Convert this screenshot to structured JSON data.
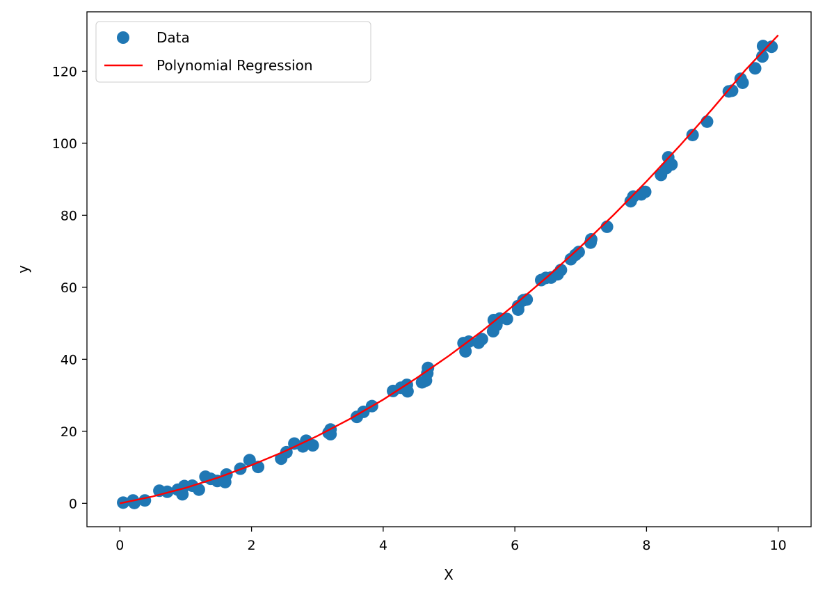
{
  "chart_data": {
    "type": "scatter",
    "title": "",
    "xlabel": "X",
    "ylabel": "y",
    "xlim": [
      -0.5,
      10.5
    ],
    "ylim": [
      -6.5,
      136.5
    ],
    "xticks": [
      0,
      2,
      4,
      6,
      8,
      10
    ],
    "yticks": [
      0,
      20,
      40,
      60,
      80,
      100,
      120
    ],
    "grid": false,
    "legend_position": "top-left",
    "series": [
      {
        "name": "Data",
        "kind": "scatter",
        "color": "#1f77b4",
        "points": [
          [
            0.05,
            0.2
          ],
          [
            0.2,
            0.8
          ],
          [
            0.22,
            0.1
          ],
          [
            0.38,
            0.8
          ],
          [
            0.6,
            3.5
          ],
          [
            0.72,
            3.2
          ],
          [
            0.88,
            3.8
          ],
          [
            0.95,
            2.5
          ],
          [
            0.98,
            4.8
          ],
          [
            1.1,
            4.9
          ],
          [
            1.2,
            3.8
          ],
          [
            1.3,
            7.4
          ],
          [
            1.38,
            6.8
          ],
          [
            1.48,
            6.2
          ],
          [
            1.6,
            5.9
          ],
          [
            1.62,
            8.0
          ],
          [
            1.83,
            9.6
          ],
          [
            1.97,
            12.0
          ],
          [
            2.1,
            10.1
          ],
          [
            2.45,
            12.4
          ],
          [
            2.53,
            14.2
          ],
          [
            2.65,
            16.6
          ],
          [
            2.78,
            15.8
          ],
          [
            2.83,
            17.4
          ],
          [
            2.93,
            16.1
          ],
          [
            3.17,
            19.6
          ],
          [
            3.2,
            19.2
          ],
          [
            3.2,
            20.5
          ],
          [
            3.6,
            24.0
          ],
          [
            3.7,
            25.4
          ],
          [
            3.83,
            27.0
          ],
          [
            4.15,
            31.2
          ],
          [
            4.27,
            32.1
          ],
          [
            4.36,
            32.9
          ],
          [
            4.37,
            31.1
          ],
          [
            4.59,
            33.6
          ],
          [
            4.65,
            34.1
          ],
          [
            4.67,
            36.1
          ],
          [
            4.68,
            37.6
          ],
          [
            5.22,
            44.5
          ],
          [
            5.25,
            42.2
          ],
          [
            5.3,
            44.9
          ],
          [
            5.45,
            44.6
          ],
          [
            5.5,
            45.6
          ],
          [
            5.67,
            47.8
          ],
          [
            5.68,
            50.9
          ],
          [
            5.72,
            49.5
          ],
          [
            5.77,
            51.3
          ],
          [
            5.88,
            51.2
          ],
          [
            6.05,
            53.8
          ],
          [
            6.05,
            54.8
          ],
          [
            6.13,
            56.4
          ],
          [
            6.18,
            56.6
          ],
          [
            6.4,
            62.0
          ],
          [
            6.47,
            62.6
          ],
          [
            6.55,
            62.7
          ],
          [
            6.65,
            63.6
          ],
          [
            6.7,
            64.8
          ],
          [
            6.85,
            67.8
          ],
          [
            6.92,
            69.0
          ],
          [
            6.97,
            69.8
          ],
          [
            7.15,
            72.4
          ],
          [
            7.16,
            73.3
          ],
          [
            7.4,
            76.8
          ],
          [
            7.76,
            83.9
          ],
          [
            7.8,
            85.2
          ],
          [
            7.92,
            85.8
          ],
          [
            7.98,
            86.5
          ],
          [
            8.22,
            91.2
          ],
          [
            8.3,
            93.1
          ],
          [
            8.33,
            96.1
          ],
          [
            8.38,
            94.1
          ],
          [
            8.7,
            102.3
          ],
          [
            8.92,
            106.0
          ],
          [
            9.25,
            114.4
          ],
          [
            9.3,
            114.6
          ],
          [
            9.43,
            117.9
          ],
          [
            9.46,
            116.8
          ],
          [
            9.65,
            120.8
          ],
          [
            9.76,
            124.1
          ],
          [
            9.77,
            127.0
          ],
          [
            9.9,
            126.8
          ]
        ]
      },
      {
        "name": "Polynomial Regression",
        "kind": "line",
        "color": "#ff0000",
        "x": [
          0,
          0.5,
          1,
          1.5,
          2,
          2.5,
          3,
          3.5,
          4,
          4.5,
          5,
          5.5,
          6,
          6.5,
          7,
          7.5,
          8,
          8.5,
          9,
          9.5,
          10
        ],
        "values": [
          0,
          1.9,
          4.3,
          7.2,
          10.6,
          14.4,
          18.7,
          23.5,
          28.8,
          34.7,
          41.0,
          47.8,
          55.2,
          63.0,
          71.3,
          80.1,
          89.4,
          99.2,
          109.5,
          120.3,
          130.0
        ]
      }
    ]
  }
}
